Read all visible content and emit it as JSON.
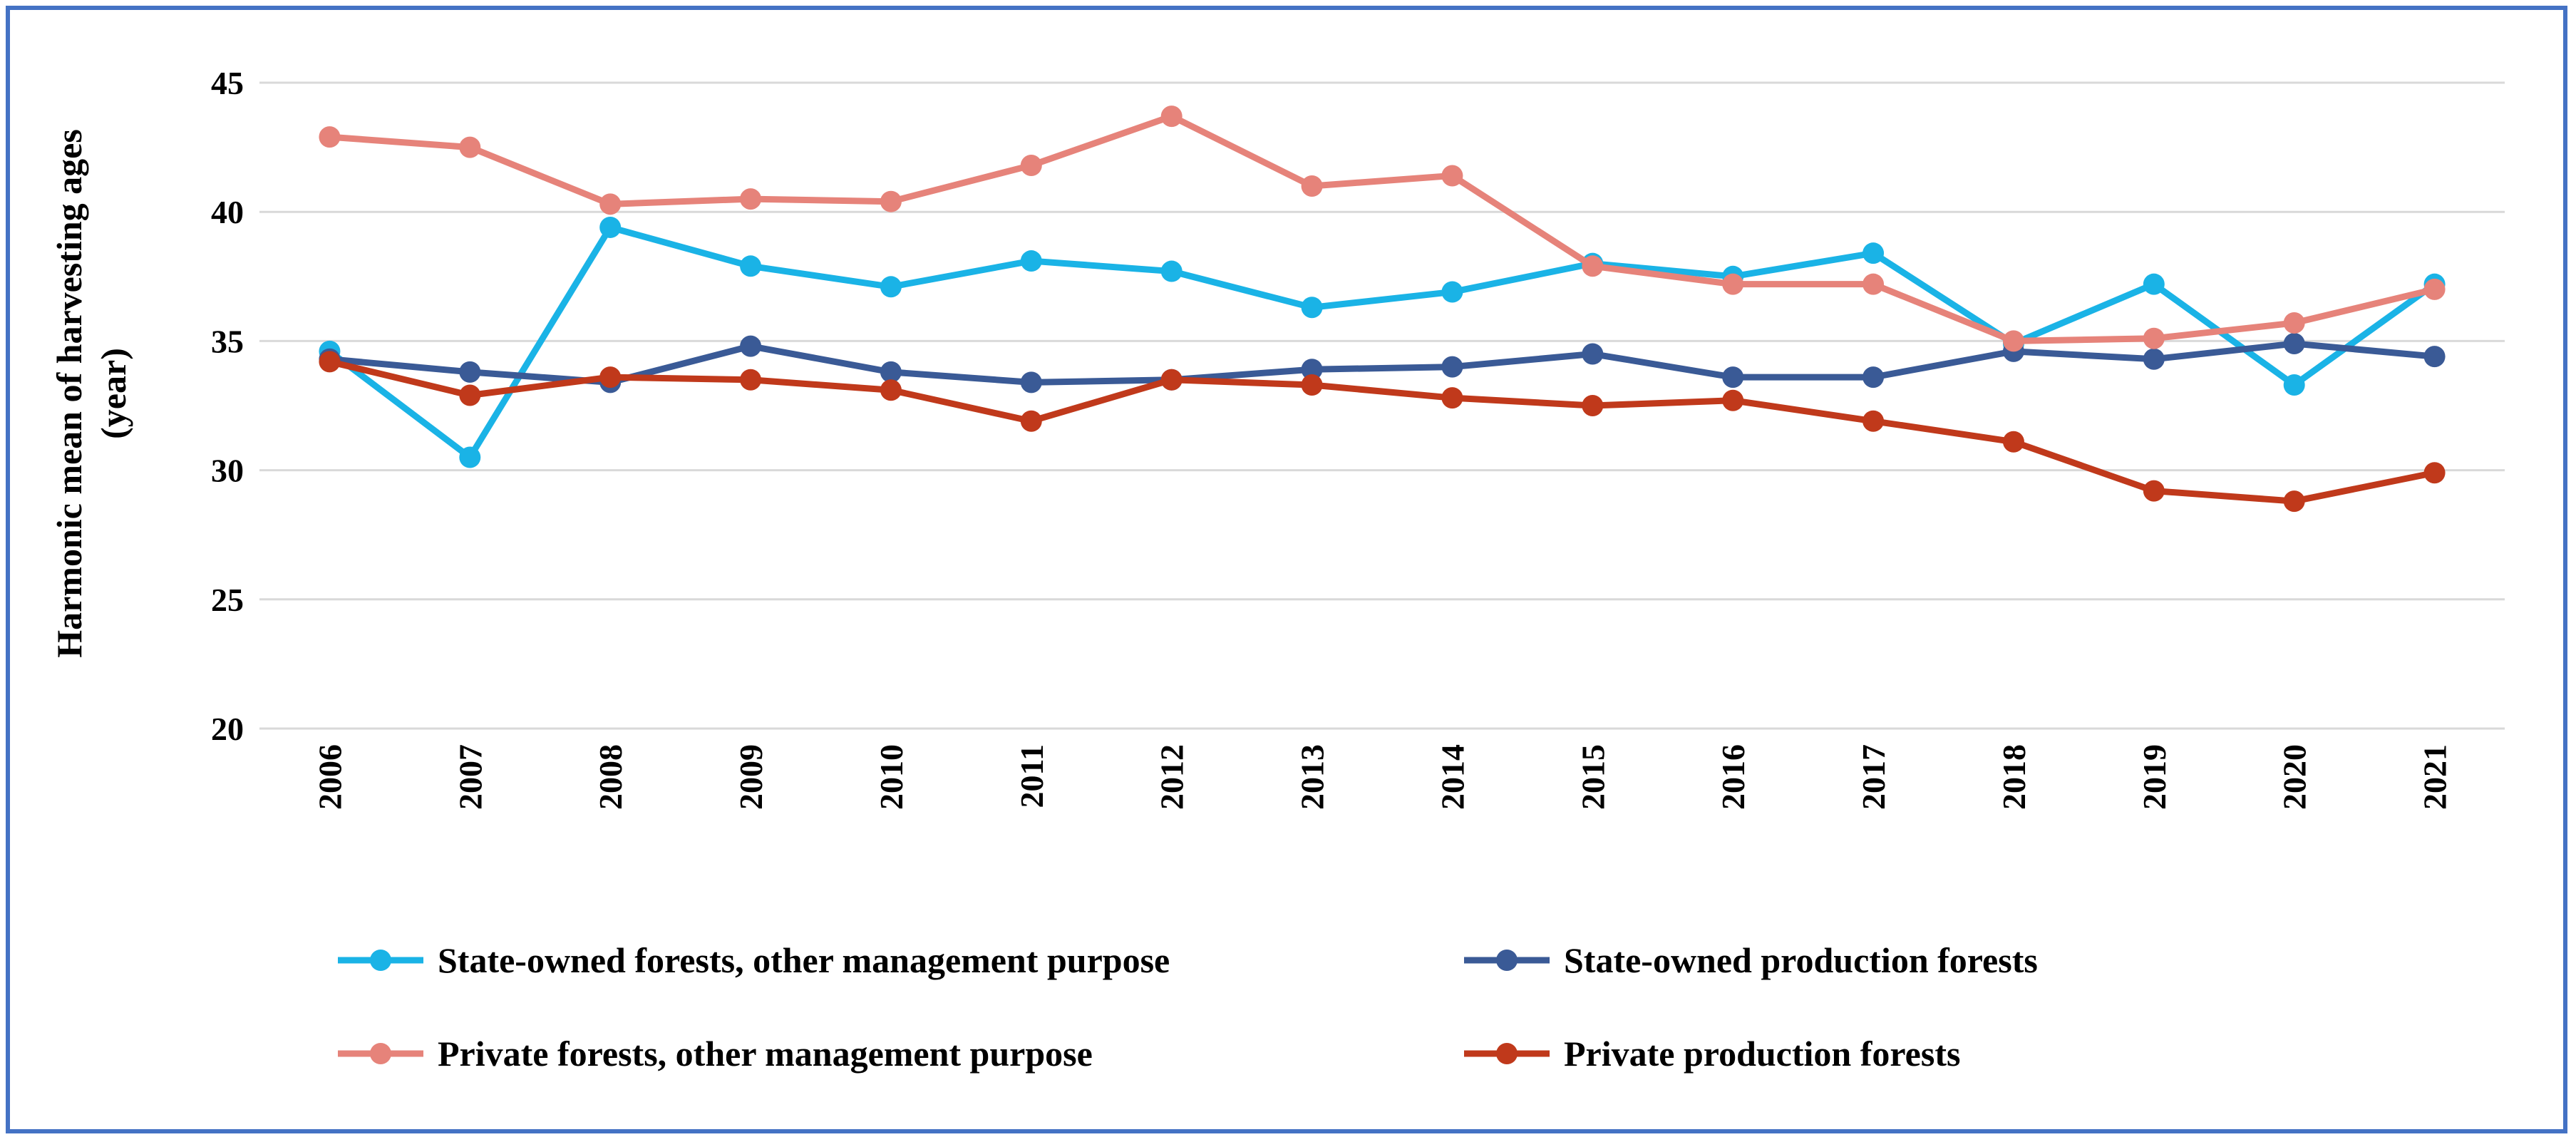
{
  "chart_data": {
    "type": "line",
    "title": "",
    "xlabel": "",
    "ylabel_line1": "Harmonic mean of harvesting ages",
    "ylabel_line2": "(year)",
    "ylim": [
      20,
      45
    ],
    "y_ticks": [
      "20",
      "25",
      "30",
      "35",
      "40",
      "45"
    ],
    "grid": true,
    "legend_position": "bottom",
    "categories": [
      "2006",
      "2007",
      "2008",
      "2009",
      "2010",
      "2011",
      "2012",
      "2013",
      "2014",
      "2015",
      "2016",
      "2017",
      "2018",
      "2019",
      "2020",
      "2021"
    ],
    "series": [
      {
        "name": "State-owned forests, other management purpose",
        "color": "#1ab3e6",
        "values": [
          34.6,
          30.5,
          39.4,
          37.9,
          37.1,
          38.1,
          37.7,
          36.3,
          36.9,
          38.0,
          37.5,
          38.4,
          34.9,
          37.2,
          33.3,
          37.2
        ]
      },
      {
        "name": "State-owned production forests",
        "color": "#3a5a96",
        "values": [
          34.3,
          33.8,
          33.4,
          34.8,
          33.8,
          33.4,
          33.5,
          33.9,
          34.0,
          34.5,
          33.6,
          33.6,
          34.6,
          34.3,
          34.9,
          34.4
        ]
      },
      {
        "name": "Private forests, other management purpose",
        "color": "#e6837a",
        "values": [
          42.9,
          42.5,
          40.3,
          40.5,
          40.4,
          41.8,
          43.7,
          41.0,
          41.4,
          37.9,
          37.2,
          37.2,
          35.0,
          35.1,
          35.7,
          37.0
        ]
      },
      {
        "name": "Private production forests",
        "color": "#c0391b",
        "values": [
          34.2,
          32.9,
          33.6,
          33.5,
          33.1,
          31.9,
          33.5,
          33.3,
          32.8,
          32.5,
          32.7,
          31.9,
          31.1,
          29.2,
          28.8,
          29.9
        ]
      }
    ]
  }
}
